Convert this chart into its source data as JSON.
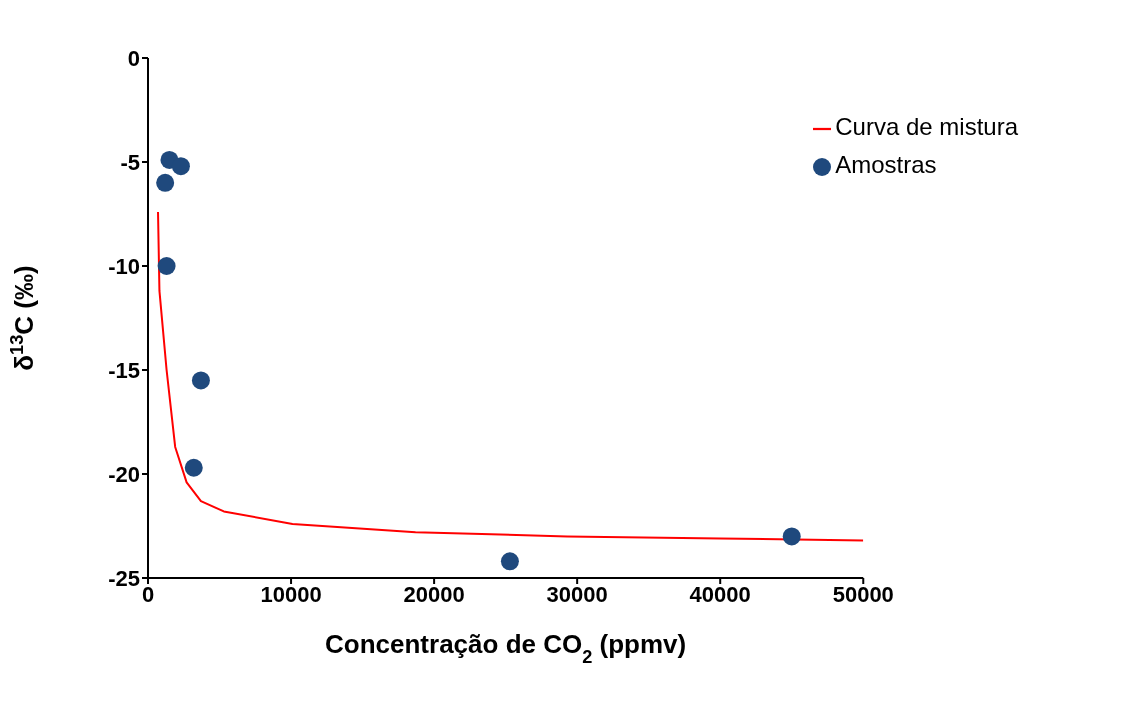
{
  "chart_data": {
    "type": "scatter",
    "xlabel": "Concentração de CO$_{2}$ (ppmv)",
    "ylabel": "δ$^{13}$C (‰)",
    "xlim": [
      0,
      50000
    ],
    "xticks": [
      0,
      10000,
      20000,
      30000,
      40000,
      50000
    ],
    "ylim": [
      -25,
      0
    ],
    "yticks": [
      -25,
      -20,
      -15,
      -10,
      -5,
      0
    ],
    "grid": false,
    "legend": "top right",
    "series": [
      {
        "name": "Curva de mistura",
        "type": "line",
        "color": "#ff0000",
        "marker": "none",
        "line_style": "solid",
        "x": [
          700,
          800,
          1300,
          1900,
          2700,
          3700,
          5300,
          10100,
          18700,
          29300,
          40000,
          50000
        ],
        "values": [
          -7.4,
          -11.2,
          -15,
          -18.7,
          -20.4,
          -21.3,
          -21.8,
          -22.4,
          -22.8,
          -23,
          -23.1,
          -23.2
        ]
      },
      {
        "name": "Amostras",
        "color": "#1f497d",
        "marker": "circle",
        "x": [
          1200,
          1500,
          2300,
          1300,
          3700,
          3200,
          25300,
          45000
        ],
        "values": [
          -6,
          -4.9,
          -5.2,
          -10,
          -15.5,
          -19.7,
          -24.2,
          -23
        ]
      }
    ]
  }
}
